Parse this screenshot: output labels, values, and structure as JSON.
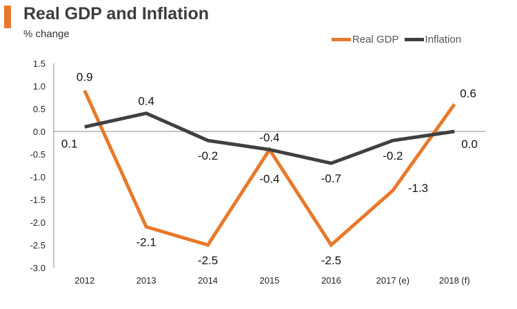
{
  "header": {
    "title": "Real GDP and Inflation",
    "subtitle": "% change"
  },
  "chart_data": {
    "type": "line",
    "title": "Real GDP and Inflation",
    "ylabel": "% change",
    "xlabel": "",
    "categories": [
      "2012",
      "2013",
      "2014",
      "2015",
      "2016",
      "2017 (e)",
      "2018 (f)"
    ],
    "ylim": [
      -3.0,
      1.5
    ],
    "yticks": [
      "1.5",
      "1.0",
      "0.5",
      "0.0",
      "-0.5",
      "-1.0",
      "-1.5",
      "-2.0",
      "-2.5",
      "-3.0"
    ],
    "grid": false,
    "legend_position": "top-right",
    "series": [
      {
        "name": "Real GDP",
        "color": "#e8792a",
        "values": [
          0.9,
          -2.1,
          -2.5,
          -0.4,
          -2.5,
          -1.3,
          0.6
        ],
        "labels": [
          "0.9",
          "-2.1",
          "-2.5",
          "-0.4",
          "-2.5",
          "-1.3",
          "0.6"
        ]
      },
      {
        "name": "Inflation",
        "color": "#404040",
        "values": [
          0.1,
          0.4,
          -0.2,
          -0.4,
          -0.7,
          -0.2,
          0.0
        ],
        "labels": [
          "0.1",
          "0.4",
          "-0.2",
          "-0.4",
          "-0.7",
          "-0.2",
          "0.0"
        ]
      }
    ]
  },
  "colors": {
    "accent": "#e8792a",
    "dark": "#404040"
  }
}
